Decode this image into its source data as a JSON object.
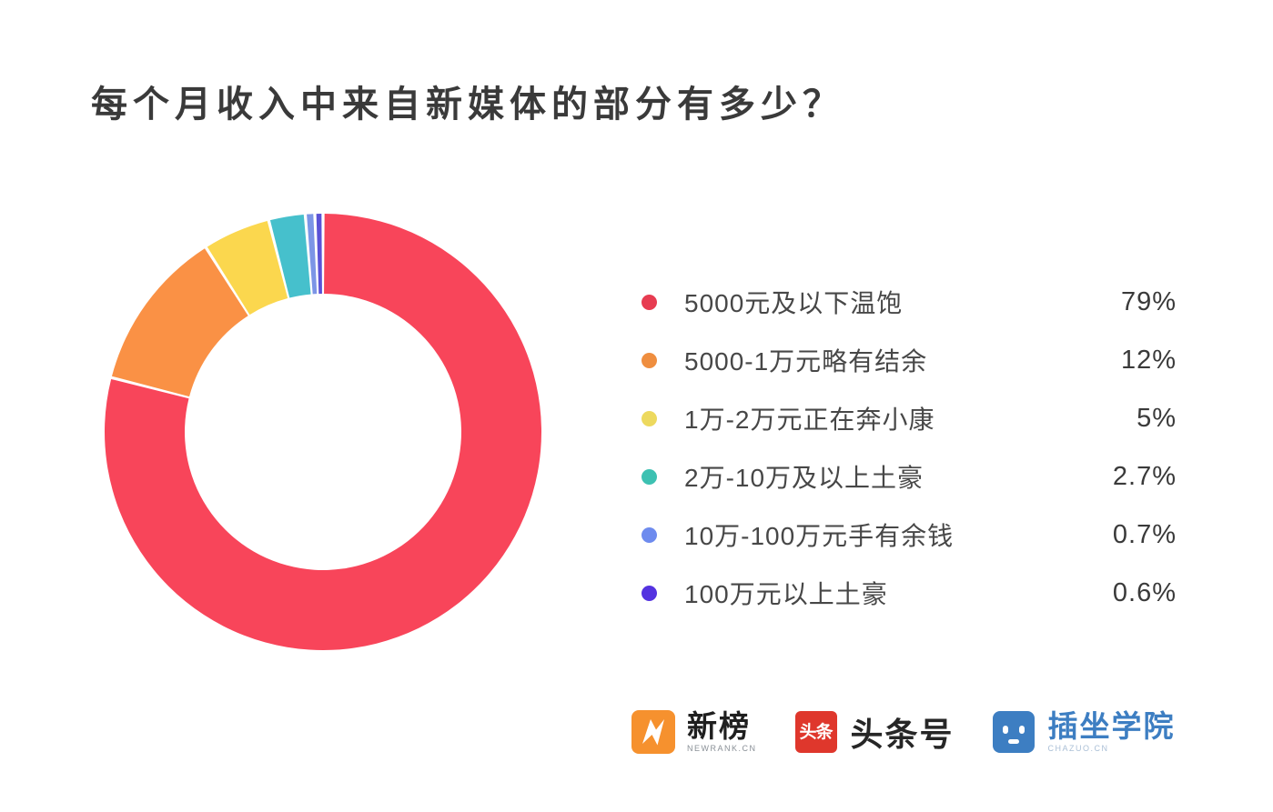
{
  "title": "每个月收入中来自新媒体的部分有多少？",
  "chart_data": {
    "type": "pie",
    "subtype": "donut",
    "title": "每个月收入中来自新媒体的部分有多少？",
    "unit": "%",
    "start_angle_deg": 0,
    "direction": "clockwise",
    "legend_position": "right",
    "segments": [
      {
        "label": "5000元及以下温饱",
        "value": 79,
        "display": "79%",
        "color": "#F8455A",
        "dot_color": "#E73C51"
      },
      {
        "label": "5000-1万元略有结余",
        "value": 12,
        "display": "12%",
        "color": "#FA9145",
        "dot_color": "#EF8E3F"
      },
      {
        "label": "1万-2万元正在奔小康",
        "value": 5,
        "display": "5%",
        "color": "#FBD74E",
        "dot_color": "#EDD95E"
      },
      {
        "label": "2万-10万及以上土豪",
        "value": 2.7,
        "display": "2.7%",
        "color": "#46C0CC",
        "dot_color": "#3DC1B2"
      },
      {
        "label": "10万-100万元手有余钱",
        "value": 0.7,
        "display": "0.7%",
        "color": "#7C95E6",
        "dot_color": "#6E8BEE"
      },
      {
        "label": "100万元以上土豪",
        "value": 0.6,
        "display": "0.6%",
        "color": "#5A52D6",
        "dot_color": "#5433E0"
      }
    ]
  },
  "footer": {
    "logos": [
      {
        "name": "newrank",
        "text": "新榜",
        "subtext": "NEWRANK.CN",
        "badge_color": "#F6912E",
        "badge_glyph": "lightning-N"
      },
      {
        "name": "toutiao",
        "text": "头条号",
        "badge_text": "头条",
        "badge_color": "#DF372C"
      },
      {
        "name": "chazuo",
        "text": "插坐学院",
        "subtext": "CHAZUO.CN",
        "badge_color": "#3D7EC2",
        "badge_glyph": "robot-face"
      }
    ]
  }
}
